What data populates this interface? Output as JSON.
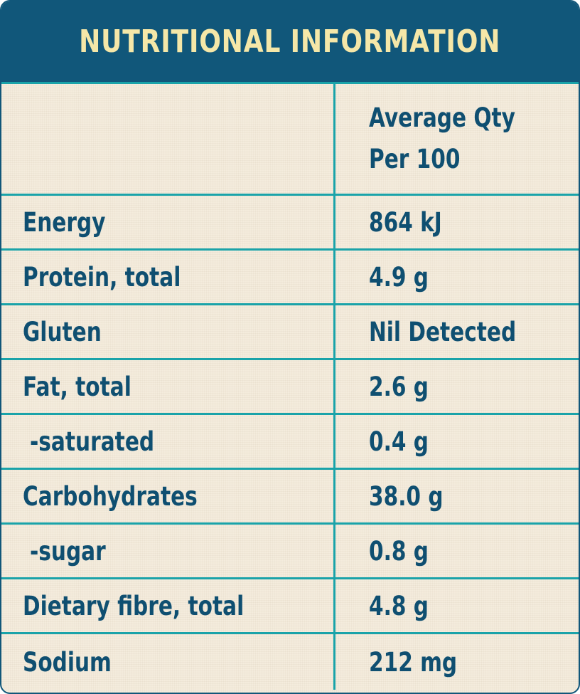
{
  "header": {
    "title": "NUTRITIONAL INFORMATION"
  },
  "table": {
    "column_header": {
      "label": "",
      "value_line1": "Average Qty",
      "value_line2": "Per 100"
    },
    "rows": [
      {
        "label": "Energy",
        "value": "864 kJ"
      },
      {
        "label": "Protein, total",
        "value": "4.9 g"
      },
      {
        "label": "Gluten",
        "value": "Nil Detected"
      },
      {
        "label": "Fat, total",
        "value": "2.6 g"
      },
      {
        "label": "-saturated",
        "value": "0.4 g"
      },
      {
        "label": "Carbohydrates",
        "value": "38.0 g"
      },
      {
        "label": "-sugar",
        "value": "0.8 g"
      },
      {
        "label": "Dietary fibre, total",
        "value": "4.8 g"
      },
      {
        "label": "Sodium",
        "value": "212 mg"
      }
    ]
  },
  "colors": {
    "header_bg": "#11577a",
    "header_text": "#f5e7a8",
    "body_text": "#0f4f71",
    "grid_lines": "#1aa3a9",
    "paper": "#f4ecdd"
  }
}
